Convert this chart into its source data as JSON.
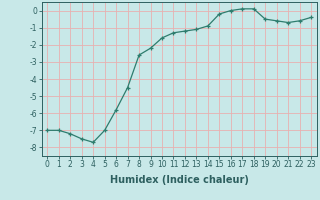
{
  "x": [
    0,
    1,
    2,
    3,
    4,
    5,
    6,
    7,
    8,
    9,
    10,
    11,
    12,
    13,
    14,
    15,
    16,
    17,
    18,
    19,
    20,
    21,
    22,
    23
  ],
  "y": [
    -7.0,
    -7.0,
    -7.2,
    -7.5,
    -7.7,
    -7.0,
    -5.8,
    -4.5,
    -2.6,
    -2.2,
    -1.6,
    -1.3,
    -1.2,
    -1.1,
    -0.9,
    -0.2,
    0.0,
    0.1,
    0.1,
    -0.5,
    -0.6,
    -0.7,
    -0.6,
    -0.4
  ],
  "xlabel": "Humidex (Indice chaleur)",
  "ylim": [
    -8.5,
    0.5
  ],
  "xlim": [
    -0.5,
    23.5
  ],
  "yticks": [
    0,
    -1,
    -2,
    -3,
    -4,
    -5,
    -6,
    -7,
    -8
  ],
  "xticks": [
    0,
    1,
    2,
    3,
    4,
    5,
    6,
    7,
    8,
    9,
    10,
    11,
    12,
    13,
    14,
    15,
    16,
    17,
    18,
    19,
    20,
    21,
    22,
    23
  ],
  "line_color": "#2e7d6e",
  "marker": "+",
  "bg_color": "#c8e8e8",
  "grid_color": "#e8b0b0",
  "tick_color": "#2e6060",
  "tick_fontsize": 5.5,
  "label_fontsize": 7,
  "label_color": "#2e6060"
}
